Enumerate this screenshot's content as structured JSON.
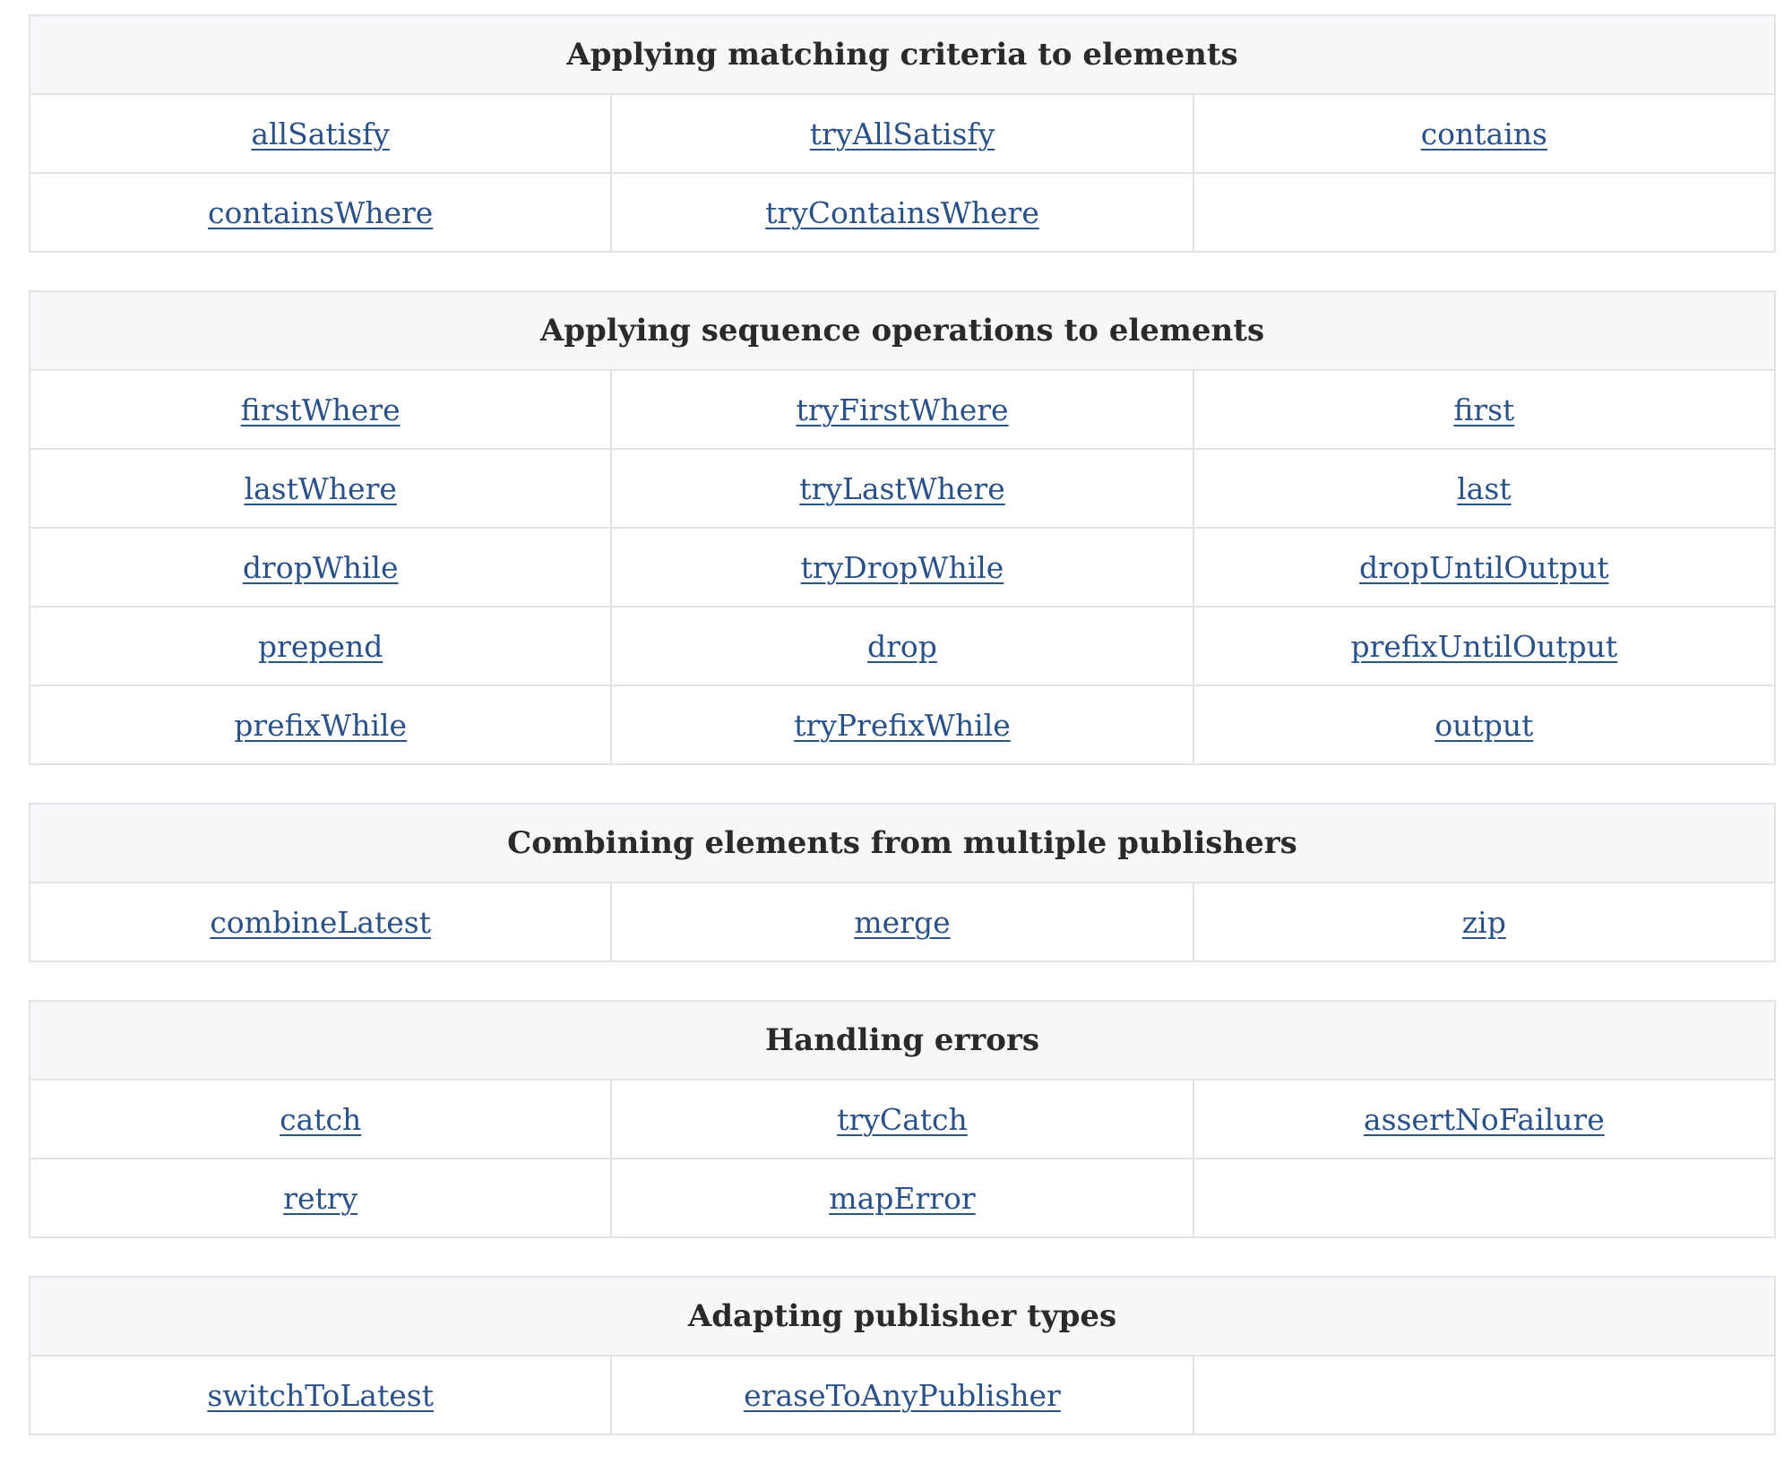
{
  "sections": [
    {
      "title": "Applying matching criteria to elements",
      "rows": [
        [
          "allSatisfy",
          "tryAllSatisfy",
          "contains"
        ],
        [
          "containsWhere",
          "tryContainsWhere",
          ""
        ]
      ]
    },
    {
      "title": "Applying sequence operations to elements",
      "rows": [
        [
          "firstWhere",
          "tryFirstWhere",
          "first"
        ],
        [
          "lastWhere",
          "tryLastWhere",
          "last"
        ],
        [
          "dropWhile",
          "tryDropWhile",
          "dropUntilOutput"
        ],
        [
          "prepend",
          "drop",
          "prefixUntilOutput"
        ],
        [
          "prefixWhile",
          "tryPrefixWhile",
          "output"
        ]
      ]
    },
    {
      "title": "Combining elements from multiple publishers",
      "rows": [
        [
          "combineLatest",
          "merge",
          "zip"
        ]
      ]
    },
    {
      "title": "Handling errors",
      "rows": [
        [
          "catch",
          "tryCatch",
          "assertNoFailure"
        ],
        [
          "retry",
          "mapError",
          ""
        ]
      ]
    },
    {
      "title": "Adapting publisher types",
      "rows": [
        [
          "switchToLatest",
          "eraseToAnyPublisher",
          ""
        ]
      ]
    }
  ]
}
